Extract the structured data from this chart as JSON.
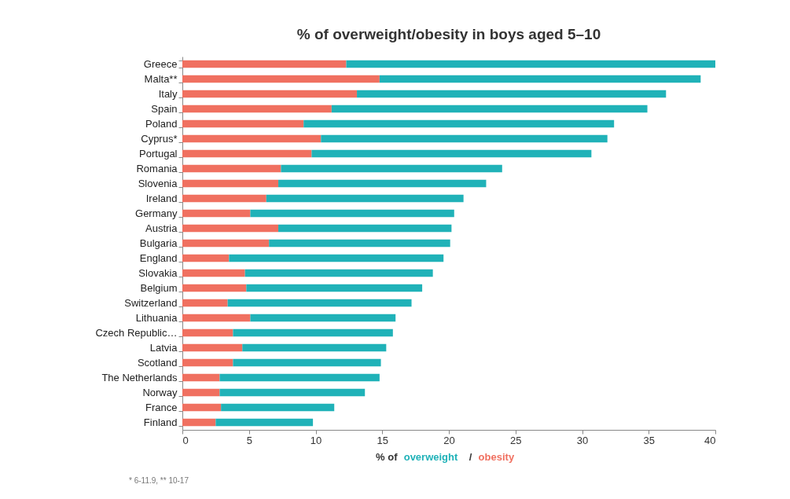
{
  "chart_data": {
    "type": "bar",
    "orientation": "horizontal",
    "stacked": true,
    "title": "% of overweight/obesity in boys aged 5–10",
    "xlabel": "% of",
    "categories": [
      "Greece",
      "Malta**",
      "Italy",
      "Spain",
      "Poland",
      "Cyprus*",
      "Portugal",
      "Romania",
      "Slovenia",
      "Ireland",
      "Germany",
      "Austria",
      "Bulgaria",
      "England",
      "Slovakia",
      "Belgium",
      "Switzerland",
      "Lithuania",
      "Czech Republic…",
      "Latvia",
      "Scotland",
      "The Netherlands",
      "Norway",
      "France",
      "Finland"
    ],
    "series": [
      {
        "name": "obesity",
        "color": "#f07060",
        "values": [
          12.3,
          14.8,
          13.1,
          11.2,
          9.1,
          10.4,
          9.7,
          7.4,
          7.2,
          6.3,
          5.1,
          7.2,
          6.5,
          3.5,
          4.7,
          4.8,
          3.4,
          5.1,
          3.8,
          4.5,
          3.8,
          2.8,
          2.8,
          2.9,
          2.5
        ]
      },
      {
        "name": "overweight",
        "color": "#20b2b8",
        "values": [
          27.7,
          24.1,
          23.2,
          23.7,
          23.3,
          21.5,
          21.0,
          16.6,
          15.6,
          14.8,
          15.3,
          13.0,
          13.6,
          16.1,
          14.1,
          13.2,
          13.8,
          10.9,
          12.0,
          10.8,
          11.1,
          12.0,
          10.9,
          8.5,
          7.3
        ]
      }
    ],
    "xlim": [
      0,
      40
    ],
    "xticks": [
      0,
      5,
      10,
      15,
      20,
      25,
      30,
      35,
      40
    ],
    "grid": false,
    "legend": false,
    "annotations": [
      "/",
      "* 6-11.9, ** 10-17"
    ]
  }
}
